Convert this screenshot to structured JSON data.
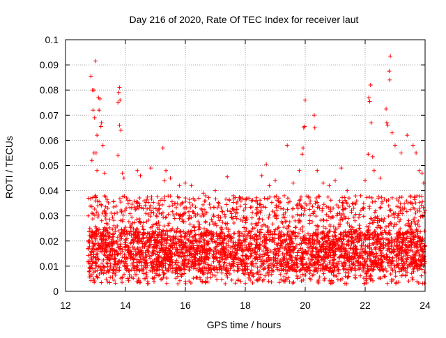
{
  "chart_data": {
    "type": "scatter",
    "title": "Day 216 of 2020, Rate Of TEC Index for receiver laut",
    "xlabel": "GPS time / hours",
    "ylabel": "ROTI / TECUs",
    "xlim": [
      12,
      24
    ],
    "ylim": [
      0,
      0.1
    ],
    "xticks": [
      12,
      14,
      16,
      18,
      20,
      22,
      24
    ],
    "yticks": [
      0,
      0.01,
      0.02,
      0.03,
      0.04,
      0.05,
      0.06,
      0.07,
      0.08,
      0.09,
      0.1
    ],
    "grid": true,
    "marker": "+",
    "color": "#ff0000",
    "series": [
      {
        "name": "ROTI",
        "points": [
          [
            12.85,
            0.0855
          ],
          [
            12.9,
            0.08
          ],
          [
            12.95,
            0.08
          ],
          [
            13.0,
            0.0915
          ],
          [
            12.92,
            0.072
          ],
          [
            12.97,
            0.069
          ],
          [
            13.1,
            0.077
          ],
          [
            13.15,
            0.0765
          ],
          [
            13.12,
            0.072
          ],
          [
            13.05,
            0.062
          ],
          [
            13.02,
            0.055
          ],
          [
            12.95,
            0.055
          ],
          [
            13.2,
            0.067
          ],
          [
            13.18,
            0.0655
          ],
          [
            13.25,
            0.058
          ],
          [
            12.88,
            0.052
          ],
          [
            13.05,
            0.048
          ],
          [
            13.3,
            0.047
          ],
          [
            13.8,
            0.081
          ],
          [
            13.78,
            0.079
          ],
          [
            13.82,
            0.076
          ],
          [
            13.75,
            0.075
          ],
          [
            13.8,
            0.066
          ],
          [
            13.85,
            0.064
          ],
          [
            13.75,
            0.054
          ],
          [
            13.9,
            0.047
          ],
          [
            13.95,
            0.045
          ],
          [
            14.4,
            0.048
          ],
          [
            14.5,
            0.046
          ],
          [
            14.85,
            0.049
          ],
          [
            15.25,
            0.057
          ],
          [
            15.35,
            0.048
          ],
          [
            15.3,
            0.044
          ],
          [
            15.5,
            0.045
          ],
          [
            15.8,
            0.042
          ],
          [
            16.0,
            0.043
          ],
          [
            16.2,
            0.042
          ],
          [
            16.6,
            0.039
          ],
          [
            17.0,
            0.04
          ],
          [
            17.4,
            0.0455
          ],
          [
            17.6,
            0.038
          ],
          [
            17.9,
            0.037
          ],
          [
            18.2,
            0.036
          ],
          [
            18.55,
            0.046
          ],
          [
            18.7,
            0.0505
          ],
          [
            18.8,
            0.042
          ],
          [
            19.0,
            0.044
          ],
          [
            19.3,
            0.038
          ],
          [
            19.4,
            0.058
          ],
          [
            19.6,
            0.043
          ],
          [
            19.8,
            0.048
          ],
          [
            19.9,
            0.0545
          ],
          [
            19.93,
            0.057
          ],
          [
            19.95,
            0.065
          ],
          [
            19.98,
            0.0655
          ],
          [
            20.0,
            0.076
          ],
          [
            20.3,
            0.07
          ],
          [
            20.32,
            0.065
          ],
          [
            20.4,
            0.048
          ],
          [
            20.6,
            0.043
          ],
          [
            20.8,
            0.042
          ],
          [
            21.0,
            0.044
          ],
          [
            21.2,
            0.049
          ],
          [
            21.4,
            0.04
          ],
          [
            21.6,
            0.035
          ],
          [
            21.85,
            0.038
          ],
          [
            22.0,
            0.044
          ],
          [
            22.1,
            0.0545
          ],
          [
            22.12,
            0.077
          ],
          [
            22.15,
            0.0755
          ],
          [
            22.18,
            0.082
          ],
          [
            22.2,
            0.067
          ],
          [
            22.25,
            0.0535
          ],
          [
            22.3,
            0.048
          ],
          [
            22.5,
            0.045
          ],
          [
            22.7,
            0.0725
          ],
          [
            22.72,
            0.067
          ],
          [
            22.75,
            0.066
          ],
          [
            22.8,
            0.0875
          ],
          [
            22.82,
            0.084
          ],
          [
            22.84,
            0.0935
          ],
          [
            22.9,
            0.063
          ],
          [
            23.0,
            0.058
          ],
          [
            23.2,
            0.055
          ],
          [
            23.4,
            0.062
          ],
          [
            23.6,
            0.058
          ],
          [
            23.7,
            0.055
          ],
          [
            23.8,
            0.048
          ],
          [
            23.9,
            0.047
          ],
          [
            23.95,
            0.043
          ]
        ]
      }
    ],
    "background_band": {
      "x_start": 12.75,
      "x_end": 24.0,
      "y_min": 0.003,
      "y_typical_low": 0.008,
      "y_typical_high": 0.024,
      "y_upper_envelope": 0.038,
      "cluster_density_points": 3800
    }
  }
}
